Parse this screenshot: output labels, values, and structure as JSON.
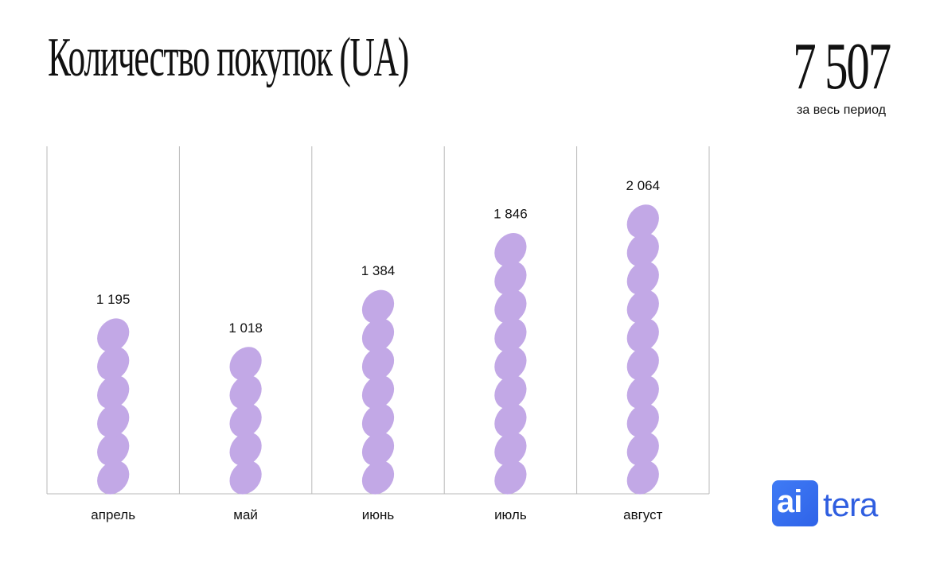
{
  "header": {
    "title": "Количество покупок (UA)",
    "total_value": "7 507",
    "total_caption": "за весь период"
  },
  "chart_data": {
    "type": "bar",
    "categories": [
      "апрель",
      "май",
      "июнь",
      "июль",
      "август"
    ],
    "values": [
      1195,
      1018,
      1384,
      1846,
      2064
    ],
    "value_labels": [
      "1 195",
      "1 018",
      "1 384",
      "1 846",
      "2 064"
    ],
    "title": "Количество покупок (UA)",
    "xlabel": "",
    "ylabel": "",
    "grid": false,
    "mark_style": "stacked-leaf-shapes"
  },
  "logo": {
    "text_box": "ai",
    "text_word": "tera"
  },
  "colors": {
    "background": "#ffffff",
    "bar_fill": "#c2a8e6",
    "divider": "#b9b9b9",
    "text": "#111111",
    "logo_blue": "#2f63e8"
  },
  "icons": {
    "bar_mark": "leaf-shape"
  }
}
